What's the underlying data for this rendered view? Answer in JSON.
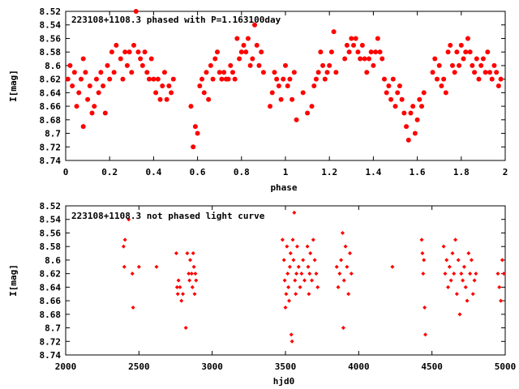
{
  "chart_data": [
    {
      "type": "scatter",
      "title": "223108+1108.3 phased with P=1.163100day",
      "xlabel": "phase",
      "ylabel": "I[mag]",
      "xlim": [
        0,
        2
      ],
      "ylim": [
        8.74,
        8.52
      ],
      "y_inverted": true,
      "x_ticks": [
        "0",
        "0.2",
        "0.4",
        "0.6",
        "0.8",
        "1",
        "1.2",
        "1.4",
        "1.6",
        "1.8",
        "2"
      ],
      "y_ticks": [
        "8.52",
        "8.54",
        "8.56",
        "8.58",
        "8.6",
        "8.62",
        "8.64",
        "8.66",
        "8.68",
        "8.7",
        "8.72",
        "8.74"
      ],
      "marker": "filled-circle",
      "color": "#ff0000",
      "points": [
        [
          0.01,
          8.62
        ],
        [
          0.02,
          8.6
        ],
        [
          0.03,
          8.63
        ],
        [
          0.04,
          8.61
        ],
        [
          0.05,
          8.66
        ],
        [
          0.06,
          8.64
        ],
        [
          0.07,
          8.62
        ],
        [
          0.08,
          8.59
        ],
        [
          0.08,
          8.69
        ],
        [
          0.09,
          8.61
        ],
        [
          0.1,
          8.65
        ],
        [
          0.11,
          8.63
        ],
        [
          0.12,
          8.67
        ],
        [
          0.13,
          8.66
        ],
        [
          0.14,
          8.62
        ],
        [
          0.15,
          8.64
        ],
        [
          0.16,
          8.61
        ],
        [
          0.17,
          8.63
        ],
        [
          0.18,
          8.67
        ],
        [
          0.19,
          8.6
        ],
        [
          0.2,
          8.62
        ],
        [
          0.21,
          8.58
        ],
        [
          0.22,
          8.61
        ],
        [
          0.23,
          8.57
        ],
        [
          0.25,
          8.59
        ],
        [
          0.26,
          8.62
        ],
        [
          0.27,
          8.58
        ],
        [
          0.28,
          8.6
        ],
        [
          0.29,
          8.58
        ],
        [
          0.3,
          8.61
        ],
        [
          0.31,
          8.57
        ],
        [
          0.32,
          8.52
        ],
        [
          0.33,
          8.58
        ],
        [
          0.34,
          8.59
        ],
        [
          0.35,
          8.6
        ],
        [
          0.36,
          8.58
        ],
        [
          0.37,
          8.61
        ],
        [
          0.38,
          8.62
        ],
        [
          0.39,
          8.59
        ],
        [
          0.4,
          8.62
        ],
        [
          0.41,
          8.64
        ],
        [
          0.42,
          8.62
        ],
        [
          0.43,
          8.65
        ],
        [
          0.44,
          8.63
        ],
        [
          0.45,
          8.61
        ],
        [
          0.46,
          8.65
        ],
        [
          0.47,
          8.63
        ],
        [
          0.48,
          8.64
        ],
        [
          0.49,
          8.62
        ],
        [
          0.57,
          8.66
        ],
        [
          0.58,
          8.72
        ],
        [
          0.59,
          8.69
        ],
        [
          0.6,
          8.7
        ],
        [
          0.61,
          8.63
        ],
        [
          0.62,
          8.62
        ],
        [
          0.63,
          8.64
        ],
        [
          0.64,
          8.61
        ],
        [
          0.65,
          8.65
        ],
        [
          0.66,
          8.6
        ],
        [
          0.67,
          8.62
        ],
        [
          0.68,
          8.59
        ],
        [
          0.69,
          8.58
        ],
        [
          0.7,
          8.61
        ],
        [
          0.71,
          8.62
        ],
        [
          0.72,
          8.61
        ],
        [
          0.73,
          8.62
        ],
        [
          0.74,
          8.62
        ],
        [
          0.75,
          8.6
        ],
        [
          0.76,
          8.61
        ],
        [
          0.77,
          8.62
        ],
        [
          0.78,
          8.56
        ],
        [
          0.79,
          8.59
        ],
        [
          0.8,
          8.58
        ],
        [
          0.81,
          8.57
        ],
        [
          0.82,
          8.58
        ],
        [
          0.83,
          8.56
        ],
        [
          0.84,
          8.6
        ],
        [
          0.85,
          8.59
        ],
        [
          0.86,
          8.54
        ],
        [
          0.87,
          8.57
        ],
        [
          0.88,
          8.6
        ],
        [
          0.89,
          8.58
        ],
        [
          0.9,
          8.61
        ],
        [
          0.93,
          8.66
        ],
        [
          0.94,
          8.64
        ],
        [
          0.95,
          8.61
        ],
        [
          0.96,
          8.62
        ],
        [
          0.97,
          8.63
        ],
        [
          0.98,
          8.65
        ],
        [
          0.99,
          8.62
        ],
        [
          1.0,
          8.6
        ],
        [
          1.01,
          8.63
        ],
        [
          1.02,
          8.62
        ],
        [
          1.03,
          8.65
        ],
        [
          1.04,
          8.61
        ],
        [
          1.05,
          8.68
        ],
        [
          1.08,
          8.64
        ],
        [
          1.1,
          8.67
        ],
        [
          1.12,
          8.66
        ],
        [
          1.13,
          8.63
        ],
        [
          1.14,
          8.62
        ],
        [
          1.15,
          8.61
        ],
        [
          1.16,
          8.58
        ],
        [
          1.17,
          8.6
        ],
        [
          1.18,
          8.62
        ],
        [
          1.19,
          8.61
        ],
        [
          1.2,
          8.6
        ],
        [
          1.21,
          8.58
        ],
        [
          1.22,
          8.55
        ],
        [
          1.23,
          8.61
        ],
        [
          1.27,
          8.59
        ],
        [
          1.28,
          8.57
        ],
        [
          1.29,
          8.58
        ],
        [
          1.3,
          8.56
        ],
        [
          1.31,
          8.57
        ],
        [
          1.32,
          8.56
        ],
        [
          1.33,
          8.58
        ],
        [
          1.34,
          8.59
        ],
        [
          1.35,
          8.57
        ],
        [
          1.36,
          8.59
        ],
        [
          1.37,
          8.61
        ],
        [
          1.38,
          8.59
        ],
        [
          1.39,
          8.58
        ],
        [
          1.4,
          8.6
        ],
        [
          1.41,
          8.58
        ],
        [
          1.42,
          8.56
        ],
        [
          1.43,
          8.58
        ],
        [
          1.44,
          8.59
        ],
        [
          1.45,
          8.62
        ],
        [
          1.46,
          8.64
        ],
        [
          1.47,
          8.63
        ],
        [
          1.48,
          8.65
        ],
        [
          1.49,
          8.62
        ],
        [
          1.5,
          8.66
        ],
        [
          1.51,
          8.64
        ],
        [
          1.52,
          8.63
        ],
        [
          1.53,
          8.65
        ],
        [
          1.54,
          8.67
        ],
        [
          1.55,
          8.69
        ],
        [
          1.56,
          8.71
        ],
        [
          1.57,
          8.67
        ],
        [
          1.58,
          8.66
        ],
        [
          1.59,
          8.7
        ],
        [
          1.6,
          8.68
        ],
        [
          1.61,
          8.65
        ],
        [
          1.62,
          8.66
        ],
        [
          1.63,
          8.64
        ],
        [
          1.67,
          8.61
        ],
        [
          1.68,
          8.59
        ],
        [
          1.69,
          8.62
        ],
        [
          1.7,
          8.6
        ],
        [
          1.71,
          8.63
        ],
        [
          1.72,
          8.62
        ],
        [
          1.73,
          8.64
        ],
        [
          1.74,
          8.58
        ],
        [
          1.75,
          8.57
        ],
        [
          1.76,
          8.6
        ],
        [
          1.77,
          8.61
        ],
        [
          1.78,
          8.58
        ],
        [
          1.79,
          8.6
        ],
        [
          1.8,
          8.57
        ],
        [
          1.81,
          8.59
        ],
        [
          1.82,
          8.58
        ],
        [
          1.83,
          8.56
        ],
        [
          1.84,
          8.58
        ],
        [
          1.85,
          8.6
        ],
        [
          1.86,
          8.61
        ],
        [
          1.87,
          8.59
        ],
        [
          1.88,
          8.62
        ],
        [
          1.89,
          8.6
        ],
        [
          1.9,
          8.59
        ],
        [
          1.91,
          8.61
        ],
        [
          1.92,
          8.58
        ],
        [
          1.93,
          8.61
        ],
        [
          1.94,
          8.62
        ],
        [
          1.95,
          8.6
        ],
        [
          1.96,
          8.61
        ],
        [
          1.97,
          8.63
        ],
        [
          1.98,
          8.62
        ]
      ]
    },
    {
      "type": "scatter",
      "title": "223108+1108.3 not phased light curve",
      "xlabel": "hjd0",
      "ylabel": "I[mag]",
      "xlim": [
        2000,
        5000
      ],
      "ylim": [
        8.74,
        8.52
      ],
      "y_inverted": true,
      "x_ticks": [
        "2000",
        "2500",
        "3000",
        "3500",
        "4000",
        "4500",
        "5000"
      ],
      "y_ticks": [
        "8.52",
        "8.54",
        "8.56",
        "8.58",
        "8.6",
        "8.62",
        "8.64",
        "8.66",
        "8.68",
        "8.7",
        "8.72",
        "8.74"
      ],
      "marker": "diamond",
      "color": "#ff0000",
      "points": [
        [
          2395,
          8.58
        ],
        [
          2400,
          8.61
        ],
        [
          2405,
          8.57
        ],
        [
          2430,
          8.54
        ],
        [
          2455,
          8.62
        ],
        [
          2460,
          8.67
        ],
        [
          2500,
          8.61
        ],
        [
          2620,
          8.61
        ],
        [
          2755,
          8.59
        ],
        [
          2760,
          8.64
        ],
        [
          2765,
          8.65
        ],
        [
          2770,
          8.63
        ],
        [
          2780,
          8.64
        ],
        [
          2790,
          8.66
        ],
        [
          2800,
          8.65
        ],
        [
          2820,
          8.7
        ],
        [
          2830,
          8.59
        ],
        [
          2840,
          8.62
        ],
        [
          2845,
          8.63
        ],
        [
          2850,
          8.6
        ],
        [
          2860,
          8.62
        ],
        [
          2865,
          8.64
        ],
        [
          2870,
          8.59
        ],
        [
          2875,
          8.61
        ],
        [
          2880,
          8.65
        ],
        [
          2885,
          8.62
        ],
        [
          2890,
          8.63
        ],
        [
          3480,
          8.57
        ],
        [
          3490,
          8.6
        ],
        [
          3495,
          8.63
        ],
        [
          3500,
          8.67
        ],
        [
          3505,
          8.65
        ],
        [
          3510,
          8.58
        ],
        [
          3515,
          8.62
        ],
        [
          3520,
          8.64
        ],
        [
          3525,
          8.66
        ],
        [
          3530,
          8.61
        ],
        [
          3535,
          8.59
        ],
        [
          3540,
          8.71
        ],
        [
          3545,
          8.72
        ],
        [
          3550,
          8.57
        ],
        [
          3555,
          8.6
        ],
        [
          3560,
          8.53
        ],
        [
          3565,
          8.63
        ],
        [
          3570,
          8.65
        ],
        [
          3575,
          8.62
        ],
        [
          3580,
          8.58
        ],
        [
          3590,
          8.61
        ],
        [
          3600,
          8.64
        ],
        [
          3610,
          8.62
        ],
        [
          3620,
          8.6
        ],
        [
          3630,
          8.63
        ],
        [
          3650,
          8.58
        ],
        [
          3655,
          8.61
        ],
        [
          3660,
          8.65
        ],
        [
          3665,
          8.62
        ],
        [
          3670,
          8.59
        ],
        [
          3680,
          8.63
        ],
        [
          3690,
          8.57
        ],
        [
          3700,
          8.6
        ],
        [
          3710,
          8.62
        ],
        [
          3720,
          8.64
        ],
        [
          3850,
          8.61
        ],
        [
          3860,
          8.64
        ],
        [
          3870,
          8.62
        ],
        [
          3880,
          8.6
        ],
        [
          3890,
          8.56
        ],
        [
          3895,
          8.7
        ],
        [
          3900,
          8.63
        ],
        [
          3910,
          8.58
        ],
        [
          3920,
          8.61
        ],
        [
          3930,
          8.65
        ],
        [
          3940,
          8.59
        ],
        [
          3950,
          8.62
        ],
        [
          4230,
          8.61
        ],
        [
          4430,
          8.57
        ],
        [
          4435,
          8.59
        ],
        [
          4440,
          8.62
        ],
        [
          4445,
          8.6
        ],
        [
          4450,
          8.67
        ],
        [
          4455,
          8.71
        ],
        [
          4580,
          8.58
        ],
        [
          4590,
          8.62
        ],
        [
          4600,
          8.6
        ],
        [
          4610,
          8.64
        ],
        [
          4620,
          8.61
        ],
        [
          4630,
          8.63
        ],
        [
          4640,
          8.59
        ],
        [
          4650,
          8.62
        ],
        [
          4660,
          8.57
        ],
        [
          4670,
          8.65
        ],
        [
          4680,
          8.6
        ],
        [
          4690,
          8.68
        ],
        [
          4700,
          8.62
        ],
        [
          4710,
          8.63
        ],
        [
          4720,
          8.61
        ],
        [
          4730,
          8.64
        ],
        [
          4740,
          8.66
        ],
        [
          4750,
          8.59
        ],
        [
          4760,
          8.62
        ],
        [
          4770,
          8.6
        ],
        [
          4780,
          8.65
        ],
        [
          4790,
          8.63
        ],
        [
          4800,
          8.62
        ],
        [
          4950,
          8.62
        ],
        [
          4960,
          8.64
        ],
        [
          4970,
          8.66
        ],
        [
          4980,
          8.6
        ],
        [
          4990,
          8.62
        ]
      ]
    }
  ]
}
